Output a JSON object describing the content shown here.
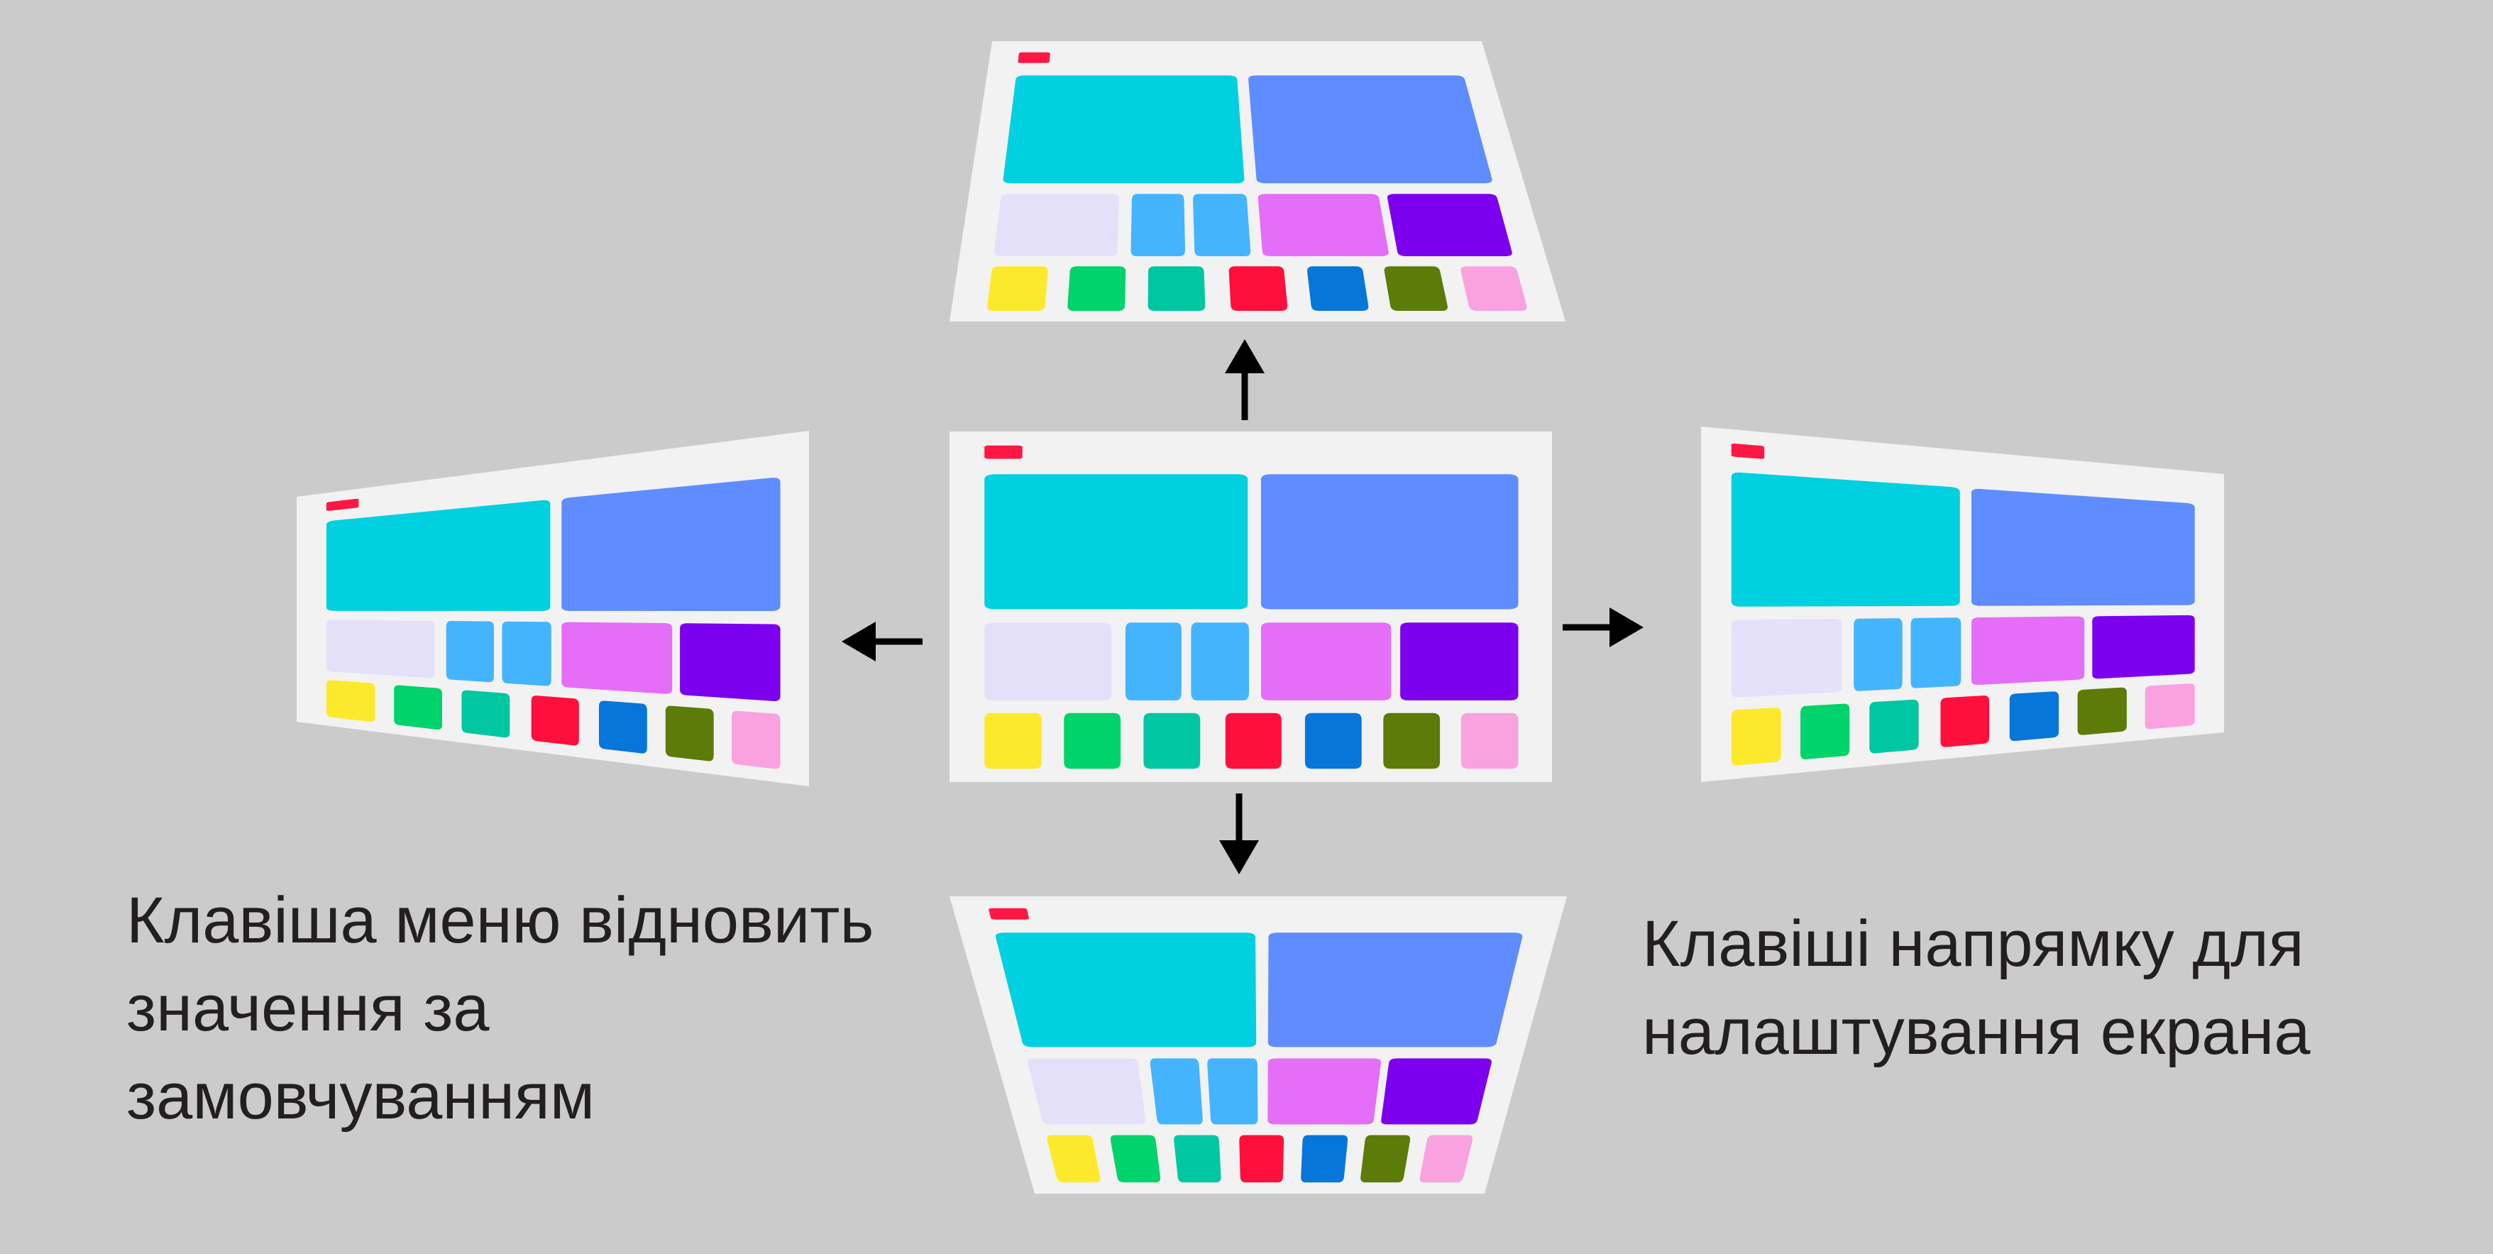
{
  "colors": {
    "background": "#cbcbcb",
    "screen": "#f2f2f2",
    "arrow": "#000000",
    "text": "#231f20",
    "indicator": "#ff1744",
    "tiles": {
      "cyan": "#00d0e0",
      "periwinkle": "#5f8cff",
      "lavender": "#e5e0fa",
      "sky": "#44b4ff",
      "orchid": "#e56ef8",
      "violet": "#7c00ee",
      "yellow": "#fde92c",
      "green": "#00d36b",
      "teal": "#00c6a2",
      "red": "#ff0f3c",
      "blue": "#0676da",
      "olive": "#5d7b08",
      "pink": "#f9a2df"
    }
  },
  "screens": [
    {
      "name": "center",
      "distortion": "none",
      "icon": "screen-layout-icon"
    },
    {
      "name": "top",
      "distortion": "trapezoid-wide-bottom",
      "icon": "screen-layout-icon"
    },
    {
      "name": "bottom",
      "distortion": "trapezoid-wide-top",
      "icon": "screen-layout-icon"
    },
    {
      "name": "left",
      "distortion": "trapezoid-tall-right",
      "icon": "screen-layout-icon"
    },
    {
      "name": "right",
      "distortion": "trapezoid-tall-left",
      "icon": "screen-layout-icon"
    }
  ],
  "arrows": [
    {
      "direction": "up",
      "icon": "arrow-up-icon"
    },
    {
      "direction": "down",
      "icon": "arrow-down-icon"
    },
    {
      "direction": "left",
      "icon": "arrow-left-icon"
    },
    {
      "direction": "right",
      "icon": "arrow-right-icon"
    }
  ],
  "captions": {
    "left": [
      "Клавіша меню відновить",
      "значення за",
      "замовчуванням"
    ],
    "right": [
      "Клавіші напрямку для",
      "налаштування екрана"
    ]
  }
}
